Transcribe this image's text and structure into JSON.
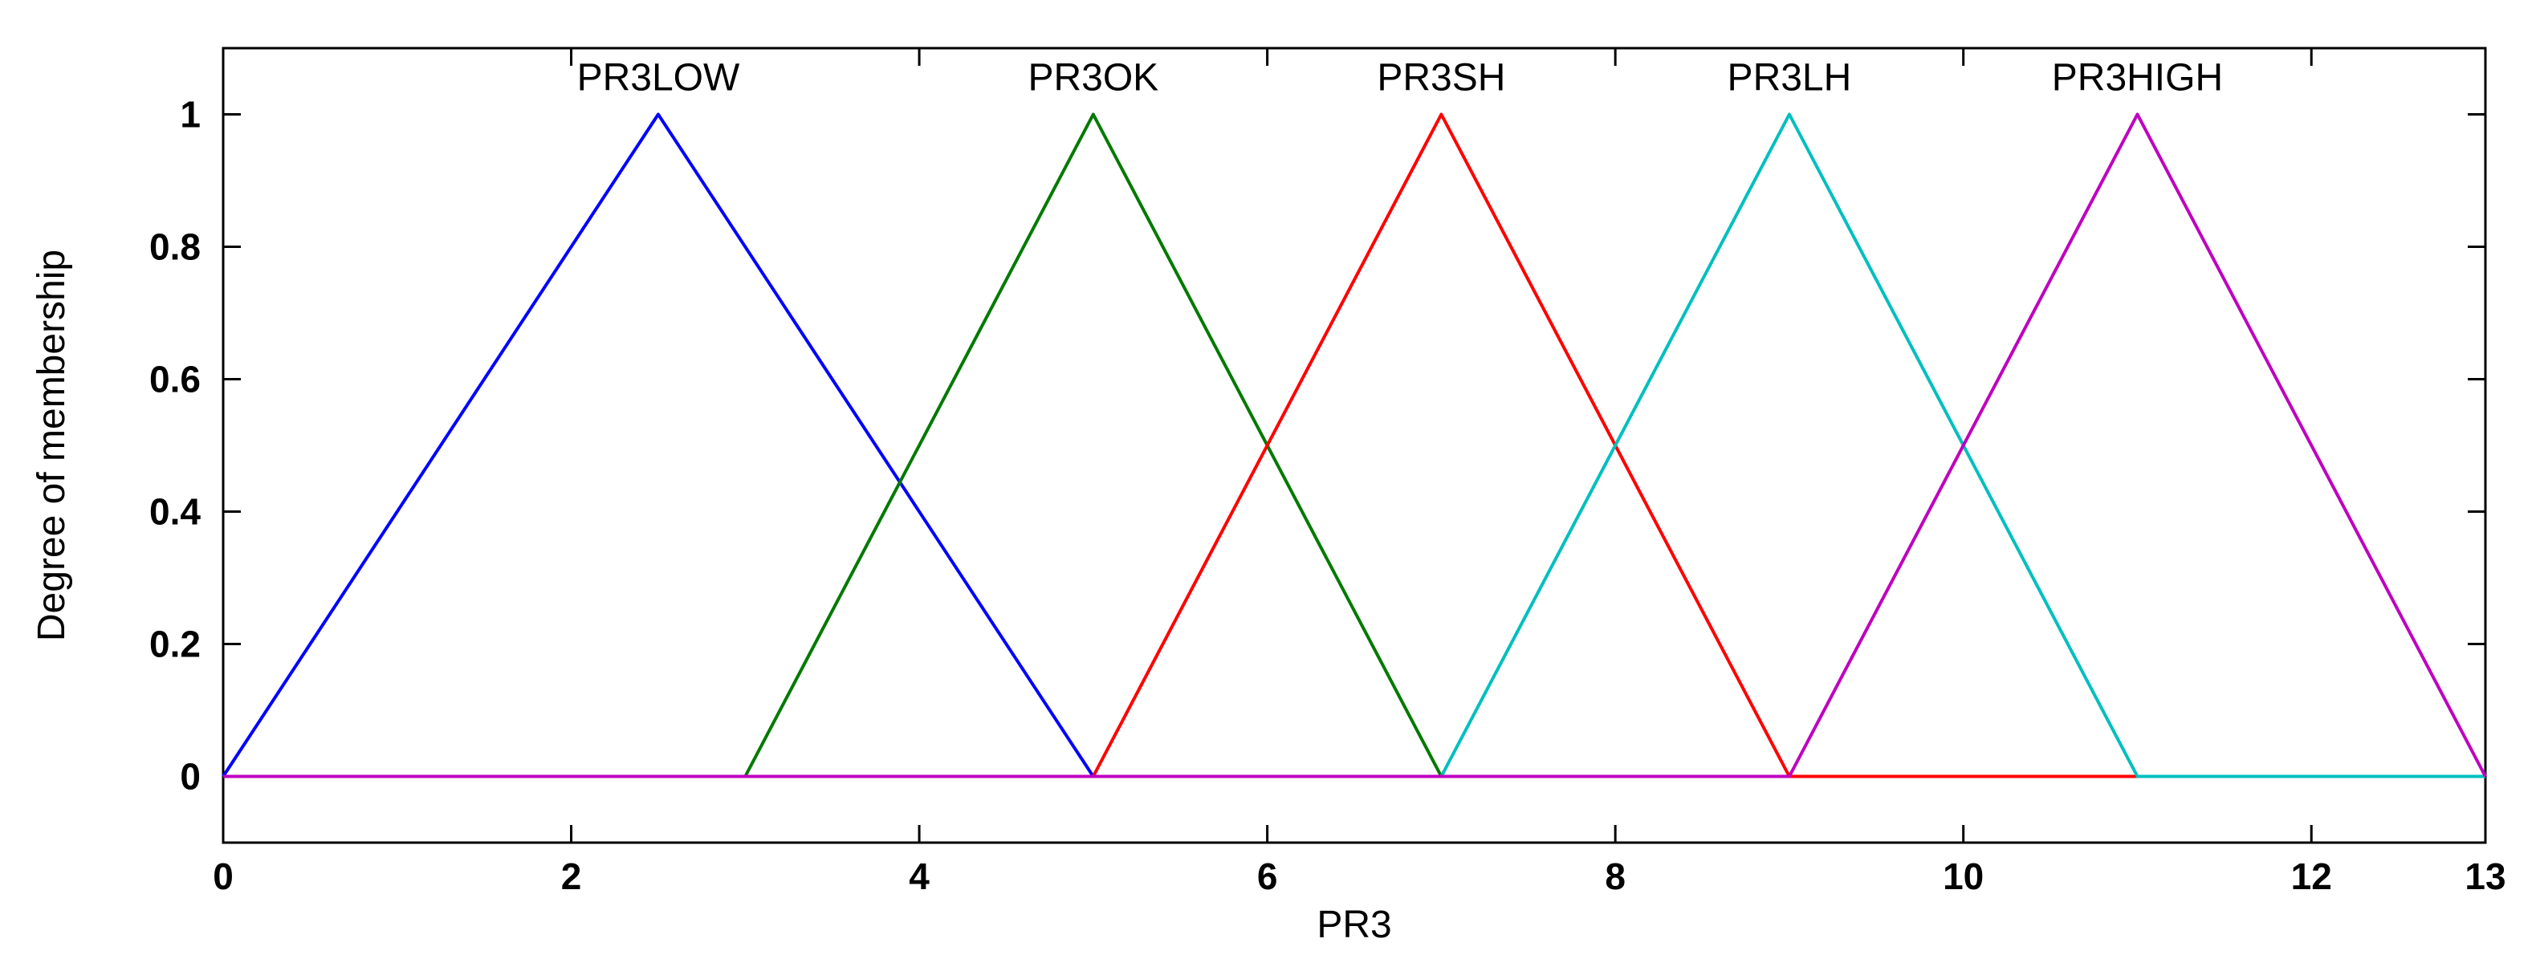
{
  "chart_data": {
    "type": "line",
    "title": "",
    "xlabel": "PR3",
    "ylabel": "Degree of membership",
    "xlim": [
      0,
      13
    ],
    "ylim": [
      -0.1,
      1.1
    ],
    "xticks": [
      0,
      2,
      4,
      6,
      8,
      10,
      12,
      13
    ],
    "yticks": [
      0,
      0.2,
      0.4,
      0.6,
      0.8,
      1
    ],
    "grid": false,
    "legend": "none",
    "series": [
      {
        "name": "PR3LOW",
        "color": "#0000ff",
        "points": [
          [
            0,
            0
          ],
          [
            2.5,
            1
          ],
          [
            5,
            0
          ],
          [
            13,
            0
          ]
        ]
      },
      {
        "name": "PR3OK",
        "color": "#007a00",
        "points": [
          [
            0,
            0
          ],
          [
            3,
            0
          ],
          [
            5,
            1
          ],
          [
            7,
            0
          ],
          [
            13,
            0
          ]
        ]
      },
      {
        "name": "PR3SH",
        "color": "#ff0000",
        "points": [
          [
            0,
            0
          ],
          [
            5,
            0
          ],
          [
            7,
            1
          ],
          [
            9,
            0
          ],
          [
            13,
            0
          ]
        ]
      },
      {
        "name": "PR3LH",
        "color": "#00bfbf",
        "points": [
          [
            0,
            0
          ],
          [
            7,
            0
          ],
          [
            9,
            1
          ],
          [
            11,
            0
          ],
          [
            13,
            0
          ]
        ]
      },
      {
        "name": "PR3HIGH",
        "color": "#bf00bf",
        "points": [
          [
            0,
            0
          ],
          [
            9,
            0
          ],
          [
            11,
            1
          ],
          [
            13,
            0
          ]
        ]
      }
    ]
  }
}
